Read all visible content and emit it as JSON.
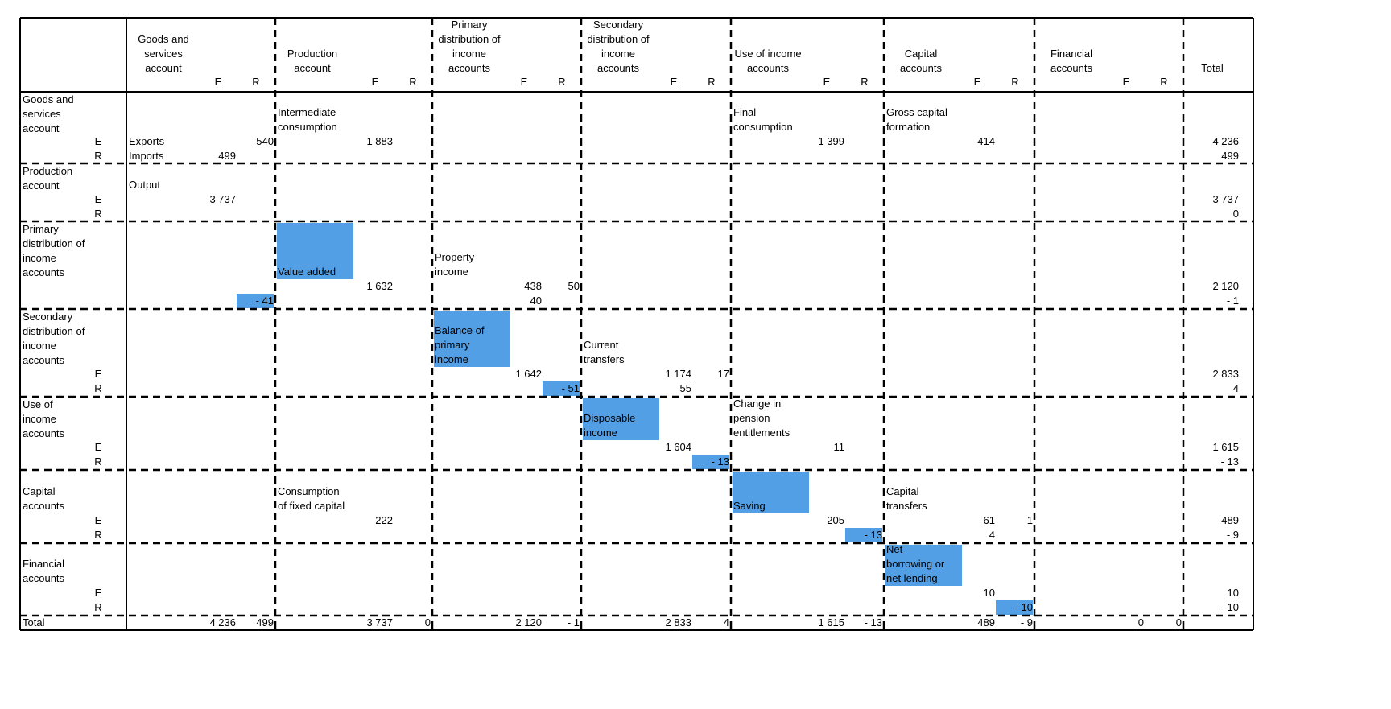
{
  "colors": {
    "highlight": "#529fe6",
    "line": "#000000"
  },
  "header": {
    "columns": [
      {
        "title": "Goods and\nservices\naccount",
        "e": "E",
        "r": "R"
      },
      {
        "title": "Production\naccount",
        "e": "E",
        "r": "R"
      },
      {
        "title": "Primary\ndistribution of\nincome\naccounts",
        "e": "E",
        "r": "R"
      },
      {
        "title": "Secondary\ndistribution of\nincome\naccounts",
        "e": "E",
        "r": "R"
      },
      {
        "title": "Use of income\naccounts",
        "e": "E",
        "r": "R"
      },
      {
        "title": "Capital\naccounts",
        "e": "E",
        "r": "R"
      },
      {
        "title": "Financial\naccounts",
        "e": "E",
        "r": "R"
      }
    ],
    "total": "Total"
  },
  "rows": [
    {
      "label": "Goods and\nservices\naccount",
      "e": "E",
      "r": "R",
      "total": {
        "e": "4 236",
        "r": "499"
      },
      "cells": [
        {
          "col": 0,
          "e_label": "Exports",
          "r_label": "Imports",
          "e_line": {
            "R": "540"
          },
          "r_line": {
            "E": "499"
          }
        },
        {
          "col": 1,
          "label": "Intermediate\nconsumption",
          "e_line": {
            "E": "1 883"
          }
        },
        {
          "col": 4,
          "label": "Final\nconsumption",
          "e_line": {
            "E": "1 399"
          }
        },
        {
          "col": 5,
          "label": "Gross capital\nformation",
          "e_line": {
            "E": "414"
          }
        }
      ]
    },
    {
      "label": "Production\naccount",
      "e": "E",
      "r": "R",
      "total": {
        "e": "3 737",
        "r": "0"
      },
      "cells": [
        {
          "col": 0,
          "label": "Output",
          "e_line": {
            "E": "3 737"
          }
        }
      ]
    },
    {
      "label": "Primary\ndistribution of\nincome\naccounts",
      "e": "",
      "r": "",
      "total": {
        "e": "2 120",
        "r": "- 1"
      },
      "cells": [
        {
          "col": 0,
          "r_line": {
            "R": "- 41"
          },
          "r_highlight": true
        },
        {
          "col": 1,
          "label": "Value added",
          "label_highlight": true,
          "e_line": {
            "E": "1 632"
          }
        },
        {
          "col": 2,
          "label": "Property\nincome",
          "e_line": {
            "E": "438",
            "R": "50"
          },
          "r_line": {
            "E": "40"
          }
        }
      ]
    },
    {
      "label": "Secondary\ndistribution of\nincome\naccounts",
      "e": "E",
      "r": "R",
      "total": {
        "e": "2 833",
        "r": "4"
      },
      "cells": [
        {
          "col": 2,
          "label": "Balance of\nprimary\nincome",
          "label_highlight": true,
          "e_line": {
            "E": "1 642"
          },
          "r_line": {
            "R": "- 51"
          },
          "r_highlight": true
        },
        {
          "col": 3,
          "label": "Current\ntransfers",
          "e_line": {
            "E": "1 174",
            "R": "17"
          },
          "r_line": {
            "E": "55"
          }
        }
      ]
    },
    {
      "label": "Use of\nincome\naccounts",
      "e": "E",
      "r": "R",
      "total": {
        "e": "1 615",
        "r": "- 13"
      },
      "cells": [
        {
          "col": 3,
          "label": "Disposable\nincome",
          "label_highlight": true,
          "e_line": {
            "E": "1 604"
          },
          "r_line": {
            "R": "- 13"
          },
          "r_highlight": true
        },
        {
          "col": 4,
          "label": "Change in\npension\nentitlements",
          "e_line": {
            "E": "11"
          }
        }
      ]
    },
    {
      "label": "Capital\naccounts",
      "e": "E",
      "r": "R",
      "total": {
        "e": "489",
        "r": "- 9"
      },
      "cells": [
        {
          "col": 1,
          "label": "Consumption\nof fixed capital",
          "e_line": {
            "E": "222"
          }
        },
        {
          "col": 4,
          "label": "Saving",
          "label_highlight": true,
          "e_line": {
            "E": "205"
          },
          "r_line": {
            "R": "- 13"
          },
          "r_highlight": true
        },
        {
          "col": 5,
          "label": "Capital\ntransfers",
          "e_line": {
            "E": "61",
            "R": "1"
          },
          "r_line": {
            "E": "4"
          }
        }
      ]
    },
    {
      "label": "Financial\naccounts",
      "e": "E",
      "r": "R",
      "total": {
        "e": "10",
        "r": "- 10"
      },
      "cells": [
        {
          "col": 5,
          "label": "Net\nborrowing or\nnet lending",
          "label_highlight": true,
          "e_line": {
            "E": "10"
          },
          "r_line": {
            "R": "- 10"
          },
          "r_highlight": true
        }
      ]
    }
  ],
  "total_row": {
    "label": "Total",
    "values": [
      {
        "e": "4 236",
        "r": "499"
      },
      {
        "e": "3 737",
        "r": "0"
      },
      {
        "e": "2 120",
        "r": "- 1"
      },
      {
        "e": "2 833",
        "r": "4"
      },
      {
        "e": "1 615",
        "r": "- 13"
      },
      {
        "e": "489",
        "r": "- 9"
      },
      {
        "e": "0",
        "r": "0"
      }
    ]
  }
}
